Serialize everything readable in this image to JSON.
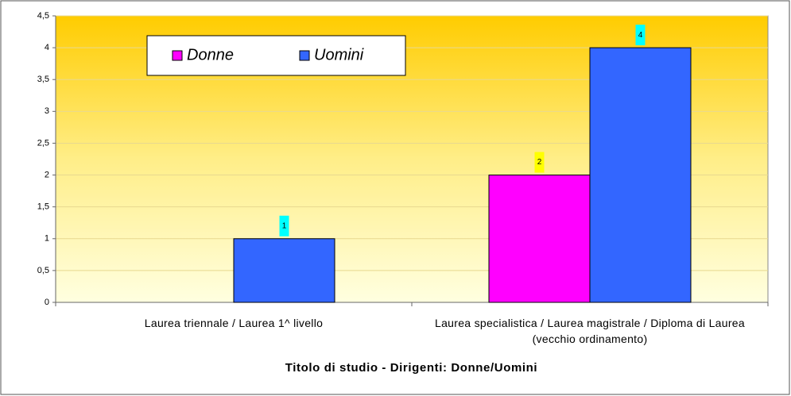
{
  "chart_data": {
    "type": "bar",
    "title": "Titolo di studio - Dirigenti: Donne/Uomini",
    "categories": [
      "Laurea triennale / Laurea 1^ livello",
      "Laurea specialistica / Laurea magistrale / Diploma di Laurea (vecchio ordinamento)"
    ],
    "series": [
      {
        "name": "Donne",
        "color": "#ff00ff",
        "label_color": "#ffff00",
        "values": [
          null,
          2
        ]
      },
      {
        "name": "Uomini",
        "color": "#3366ff",
        "label_color": "#00ffff",
        "values": [
          1,
          4
        ]
      }
    ],
    "ylim": [
      0,
      4.5
    ],
    "yticks": [
      0,
      {
        "value": 0.5,
        "label": "0,5"
      },
      1,
      {
        "value": 1.5,
        "label": "1,5"
      },
      2,
      {
        "value": 2.5,
        "label": "2,5"
      },
      3,
      {
        "value": 3.5,
        "label": "3,5"
      },
      4,
      {
        "value": 4.5,
        "label": "4,5"
      }
    ],
    "grid": true,
    "legend": "top-left"
  }
}
